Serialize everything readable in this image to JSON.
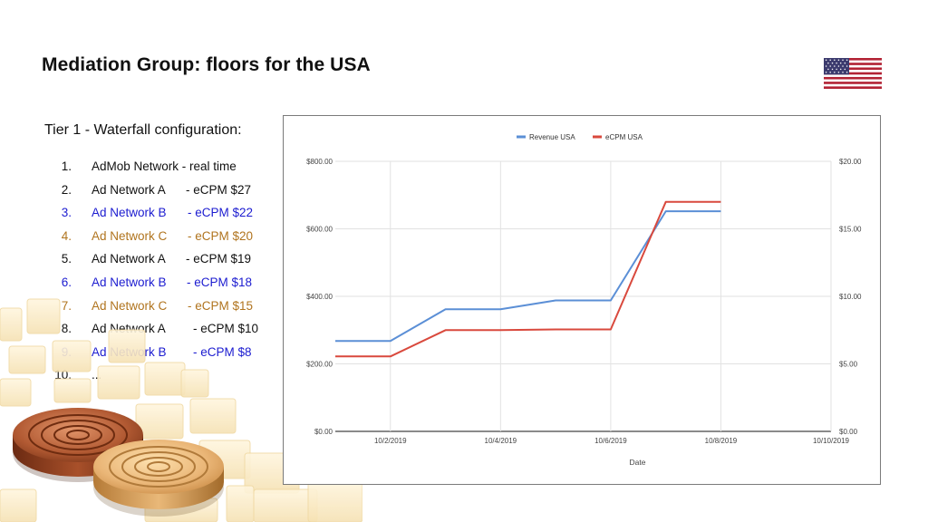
{
  "slide": {
    "title": "Mediation Group: floors for the USA",
    "flag_icon": "us-flag-icon"
  },
  "waterfall": {
    "heading": "Tier 1 - Waterfall configuration:",
    "items": [
      {
        "num": "1.",
        "network": "AdMob Network - real time",
        "floor": "",
        "color": "#111111"
      },
      {
        "num": "2.",
        "network": "Ad Network A",
        "floor": "- eCPM $27",
        "color": "#111111"
      },
      {
        "num": "3.",
        "network": "Ad Network B",
        "floor": "- eCPM $22",
        "color": "#1c1cd0"
      },
      {
        "num": "4.",
        "network": "Ad Network C",
        "floor": "- eCPM $20",
        "color": "#b0741e"
      },
      {
        "num": "5.",
        "network": "Ad Network A",
        "floor": "- eCPM $19",
        "color": "#111111"
      },
      {
        "num": "6.",
        "network": "Ad Network B",
        "floor": "- eCPM $18",
        "color": "#1c1cd0"
      },
      {
        "num": "7.",
        "network": "Ad Network C",
        "floor": "- eCPM $15",
        "color": "#b0741e"
      },
      {
        "num": "8.",
        "network": "Ad Network A",
        "floor": "- eCPM $10",
        "color": "#111111"
      },
      {
        "num": "9.",
        "network": "Ad Network B",
        "floor": "- eCPM $8",
        "color": "#1c1cd0"
      },
      {
        "num": "10.",
        "network": "...",
        "floor": "",
        "color": "#111111"
      }
    ]
  },
  "chart_data": {
    "type": "line",
    "x": [
      "10/2/2019",
      "10/3/2019",
      "10/4/2019",
      "10/5/2019",
      "10/6/2019",
      "10/7/2019",
      "10/8/2019"
    ],
    "x_start": "10/1/2019",
    "xlim": [
      "10/1/2019",
      "10/10/2019"
    ],
    "x_ticks": [
      "10/2/2019",
      "10/4/2019",
      "10/6/2019",
      "10/8/2019",
      "10/10/2019"
    ],
    "xlabel": "Date",
    "ylim_left": [
      0,
      800
    ],
    "ylim_right": [
      0,
      20
    ],
    "y_ticks_left": [
      "$0.00",
      "$200.00",
      "$400.00",
      "$600.00",
      "$800.00"
    ],
    "y_ticks_right": [
      "$0.00",
      "$5.00",
      "$10.00",
      "$15.00",
      "$20.00"
    ],
    "grid": true,
    "legend_position": "top",
    "series": [
      {
        "name": "Revenue USA",
        "axis": "left",
        "color": "#5b8fd6",
        "points": [
          [
            "10/1/2019",
            268
          ],
          [
            "10/2/2019",
            268
          ],
          [
            "10/3/2019",
            362
          ],
          [
            "10/4/2019",
            362
          ],
          [
            "10/5/2019",
            388
          ],
          [
            "10/6/2019",
            388
          ],
          [
            "10/7/2019",
            652
          ],
          [
            "10/8/2019",
            652
          ]
        ]
      },
      {
        "name": "eCPM USA",
        "axis": "right",
        "color": "#d9493d",
        "points": [
          [
            "10/1/2019",
            5.55
          ],
          [
            "10/2/2019",
            5.55
          ],
          [
            "10/3/2019",
            7.5
          ],
          [
            "10/4/2019",
            7.5
          ],
          [
            "10/5/2019",
            7.55
          ],
          [
            "10/6/2019",
            7.55
          ],
          [
            "10/7/2019",
            17.0
          ],
          [
            "10/8/2019",
            17.0
          ]
        ]
      }
    ]
  }
}
